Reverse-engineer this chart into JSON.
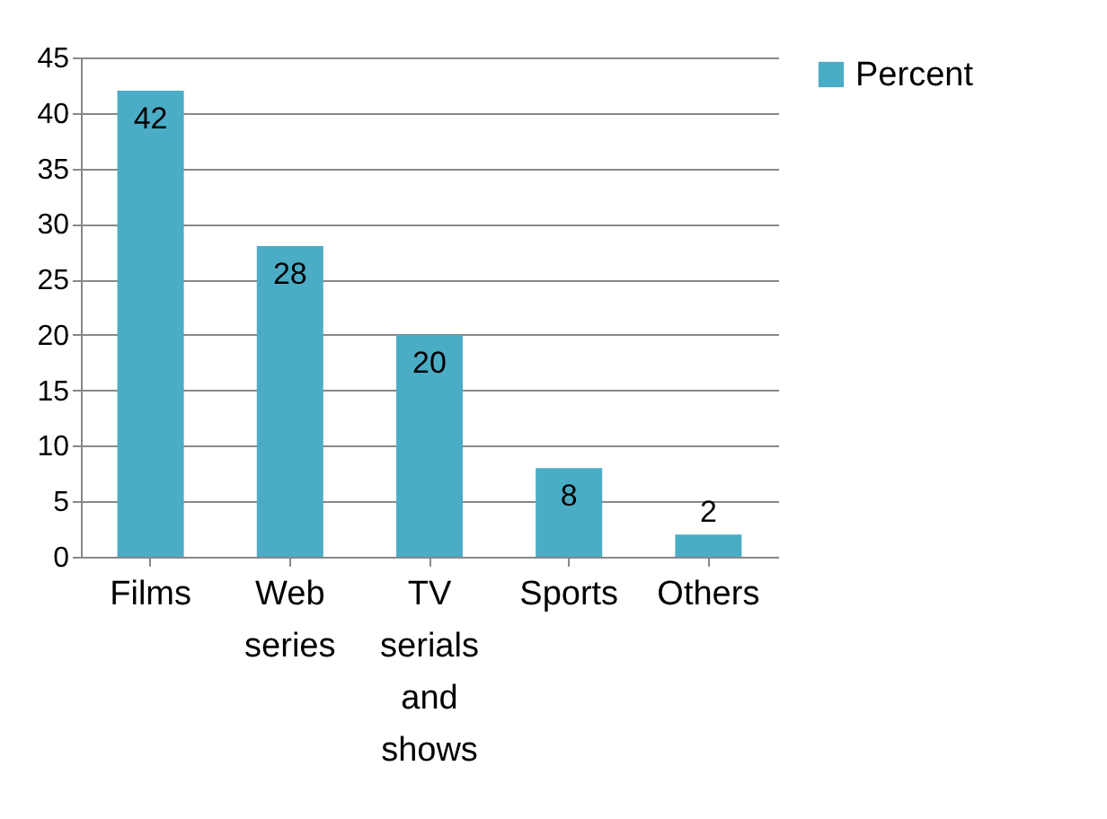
{
  "chart_data": {
    "type": "bar",
    "categories": [
      "Films",
      "Web series",
      "TV serials and shows",
      "Sports",
      "Others"
    ],
    "series": [
      {
        "name": "Percent",
        "color": "#4bacc6",
        "values": [
          42,
          28,
          20,
          8,
          2
        ]
      }
    ],
    "ylim": [
      0,
      45
    ],
    "yticks": [
      0,
      5,
      10,
      15,
      20,
      25,
      30,
      35,
      40,
      45
    ],
    "grid": "y",
    "legend": "right",
    "data_labels": true
  }
}
